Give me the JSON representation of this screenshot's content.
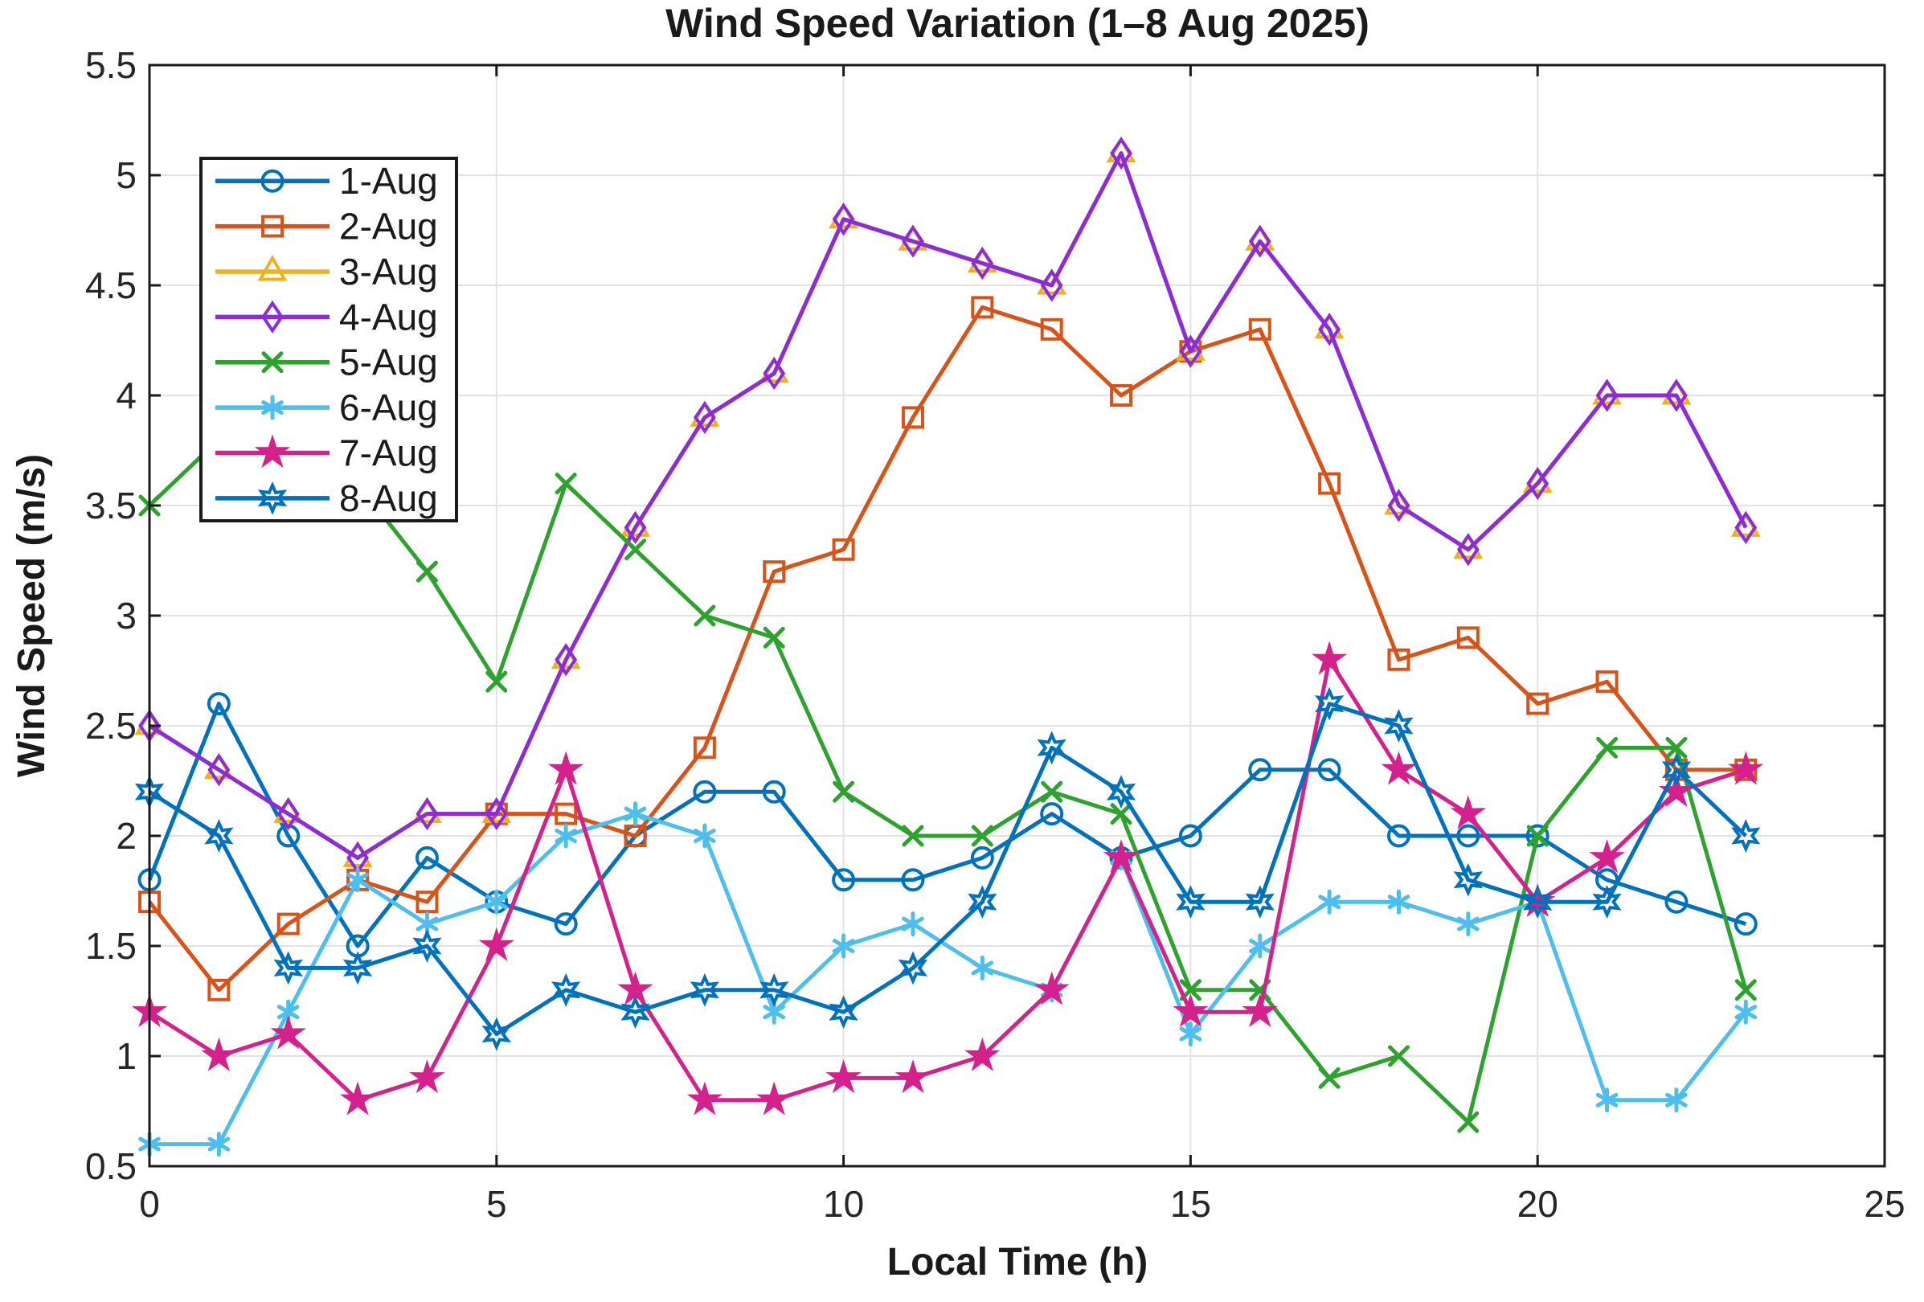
{
  "chart_data": {
    "type": "line",
    "title": "Wind Speed Variation (1–8 Aug 2025)",
    "xlabel": "Local Time (h)",
    "ylabel": "Wind Speed (m/s)",
    "x": [
      0,
      1,
      2,
      3,
      4,
      5,
      6,
      7,
      8,
      9,
      10,
      11,
      12,
      13,
      14,
      15,
      16,
      17,
      18,
      19,
      20,
      21,
      22,
      23
    ],
    "xlim": [
      0,
      25
    ],
    "ylim": [
      0.5,
      5.5
    ],
    "xticks": [
      0,
      5,
      10,
      15,
      20,
      25
    ],
    "yticks": [
      0.5,
      1,
      1.5,
      2,
      2.5,
      3,
      3.5,
      4,
      4.5,
      5,
      5.5
    ],
    "grid": true,
    "legend_position": "upper-left",
    "axis_color": "#1a1a1a",
    "tick_label_color": "#262626",
    "grid_color": "#e2e2e2",
    "series": [
      {
        "name": "1-Aug",
        "color": "#0072BD",
        "marker": "circle",
        "values": [
          1.8,
          2.6,
          2.0,
          1.5,
          1.9,
          1.7,
          1.6,
          2.0,
          2.2,
          2.2,
          1.8,
          1.8,
          1.9,
          2.1,
          1.9,
          2.0,
          2.3,
          2.3,
          2.0,
          2.0,
          2.0,
          1.8,
          1.7,
          1.6
        ]
      },
      {
        "name": "2-Aug",
        "color": "#D95319",
        "marker": "square",
        "values": [
          1.7,
          1.3,
          1.6,
          1.8,
          1.7,
          2.1,
          2.1,
          2.0,
          2.4,
          3.2,
          3.3,
          3.9,
          4.4,
          4.3,
          4.0,
          4.2,
          4.3,
          3.6,
          2.8,
          2.9,
          2.6,
          2.7,
          2.3,
          2.3
        ]
      },
      {
        "name": "3-Aug",
        "color": "#EDB120",
        "marker": "triangle",
        "values": [
          2.5,
          2.3,
          2.1,
          1.9,
          2.1,
          2.1,
          2.8,
          3.4,
          3.9,
          4.1,
          4.8,
          4.7,
          4.6,
          4.5,
          5.1,
          4.2,
          4.7,
          4.3,
          3.5,
          3.3,
          3.6,
          4.0,
          4.0,
          3.4
        ]
      },
      {
        "name": "4-Aug",
        "color": "#8D2BD9",
        "marker": "diamond",
        "values": [
          2.5,
          2.3,
          2.1,
          1.9,
          2.1,
          2.1,
          2.8,
          3.4,
          3.9,
          4.1,
          4.8,
          4.7,
          4.6,
          4.5,
          5.1,
          4.2,
          4.7,
          4.3,
          3.5,
          3.3,
          3.6,
          4.0,
          4.0,
          3.4
        ]
      },
      {
        "name": "5-Aug",
        "color": "#2EA22E",
        "marker": "x",
        "values": [
          3.5,
          3.8,
          4.0,
          3.6,
          3.2,
          2.7,
          3.6,
          3.3,
          3.0,
          2.9,
          2.2,
          2.0,
          2.0,
          2.2,
          2.1,
          1.3,
          1.3,
          0.9,
          1.0,
          0.7,
          2.0,
          2.4,
          2.4,
          1.3
        ]
      },
      {
        "name": "6-Aug",
        "color": "#4DBEEE",
        "marker": "asterisk",
        "values": [
          0.6,
          0.6,
          1.2,
          1.8,
          1.6,
          1.7,
          2.0,
          2.1,
          2.0,
          1.2,
          1.5,
          1.6,
          1.4,
          1.3,
          1.9,
          1.1,
          1.5,
          1.7,
          1.7,
          1.6,
          1.7,
          0.8,
          0.8,
          1.2
        ]
      },
      {
        "name": "7-Aug",
        "color": "#D4218C",
        "marker": "star",
        "values": [
          1.2,
          1.0,
          1.1,
          0.8,
          0.9,
          1.5,
          2.3,
          1.3,
          0.8,
          0.8,
          0.9,
          0.9,
          1.0,
          1.3,
          1.9,
          1.2,
          1.2,
          2.8,
          2.3,
          2.1,
          1.7,
          1.9,
          2.2,
          2.3
        ]
      },
      {
        "name": "8-Aug",
        "color": "#0072BD",
        "marker": "hexagram",
        "values": [
          2.2,
          2.0,
          1.4,
          1.4,
          1.5,
          1.1,
          1.3,
          1.2,
          1.3,
          1.3,
          1.2,
          1.4,
          1.7,
          2.4,
          2.2,
          1.7,
          1.7,
          2.6,
          2.5,
          1.8,
          1.7,
          1.7,
          2.3,
          2.0
        ]
      }
    ]
  }
}
